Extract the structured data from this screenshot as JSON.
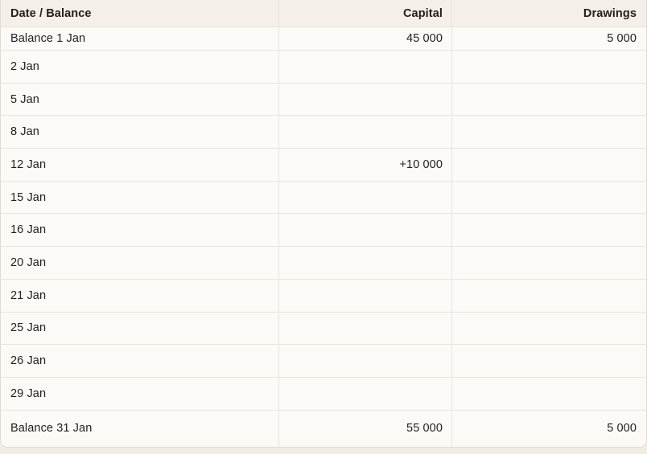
{
  "table": {
    "columns": [
      "Date / Balance",
      "Capital",
      "Drawings"
    ],
    "rows": [
      {
        "date": "Balance 1 Jan",
        "capital": "45 000",
        "drawings": "5 000"
      },
      {
        "date": "2 Jan",
        "capital": "",
        "drawings": ""
      },
      {
        "date": "5 Jan",
        "capital": "",
        "drawings": ""
      },
      {
        "date": "8 Jan",
        "capital": "",
        "drawings": ""
      },
      {
        "date": "12 Jan",
        "capital": "+10 000",
        "drawings": ""
      },
      {
        "date": "15 Jan",
        "capital": "",
        "drawings": ""
      },
      {
        "date": "16 Jan",
        "capital": "",
        "drawings": ""
      },
      {
        "date": "20 Jan",
        "capital": "",
        "drawings": ""
      },
      {
        "date": "21 Jan",
        "capital": "",
        "drawings": ""
      },
      {
        "date": "25 Jan",
        "capital": "",
        "drawings": ""
      },
      {
        "date": "26 Jan",
        "capital": "",
        "drawings": ""
      },
      {
        "date": "29 Jan",
        "capital": "",
        "drawings": ""
      },
      {
        "date": "Balance 31 Jan",
        "capital": "55 000",
        "drawings": "5 000"
      }
    ],
    "colors": {
      "page_bg": "#f2ece5",
      "header_bg": "#f4efe8",
      "row_bg": "#fcfaf7",
      "border": "#e9e3da",
      "outer_border": "#e2dbd1",
      "text": "#23201d"
    }
  }
}
